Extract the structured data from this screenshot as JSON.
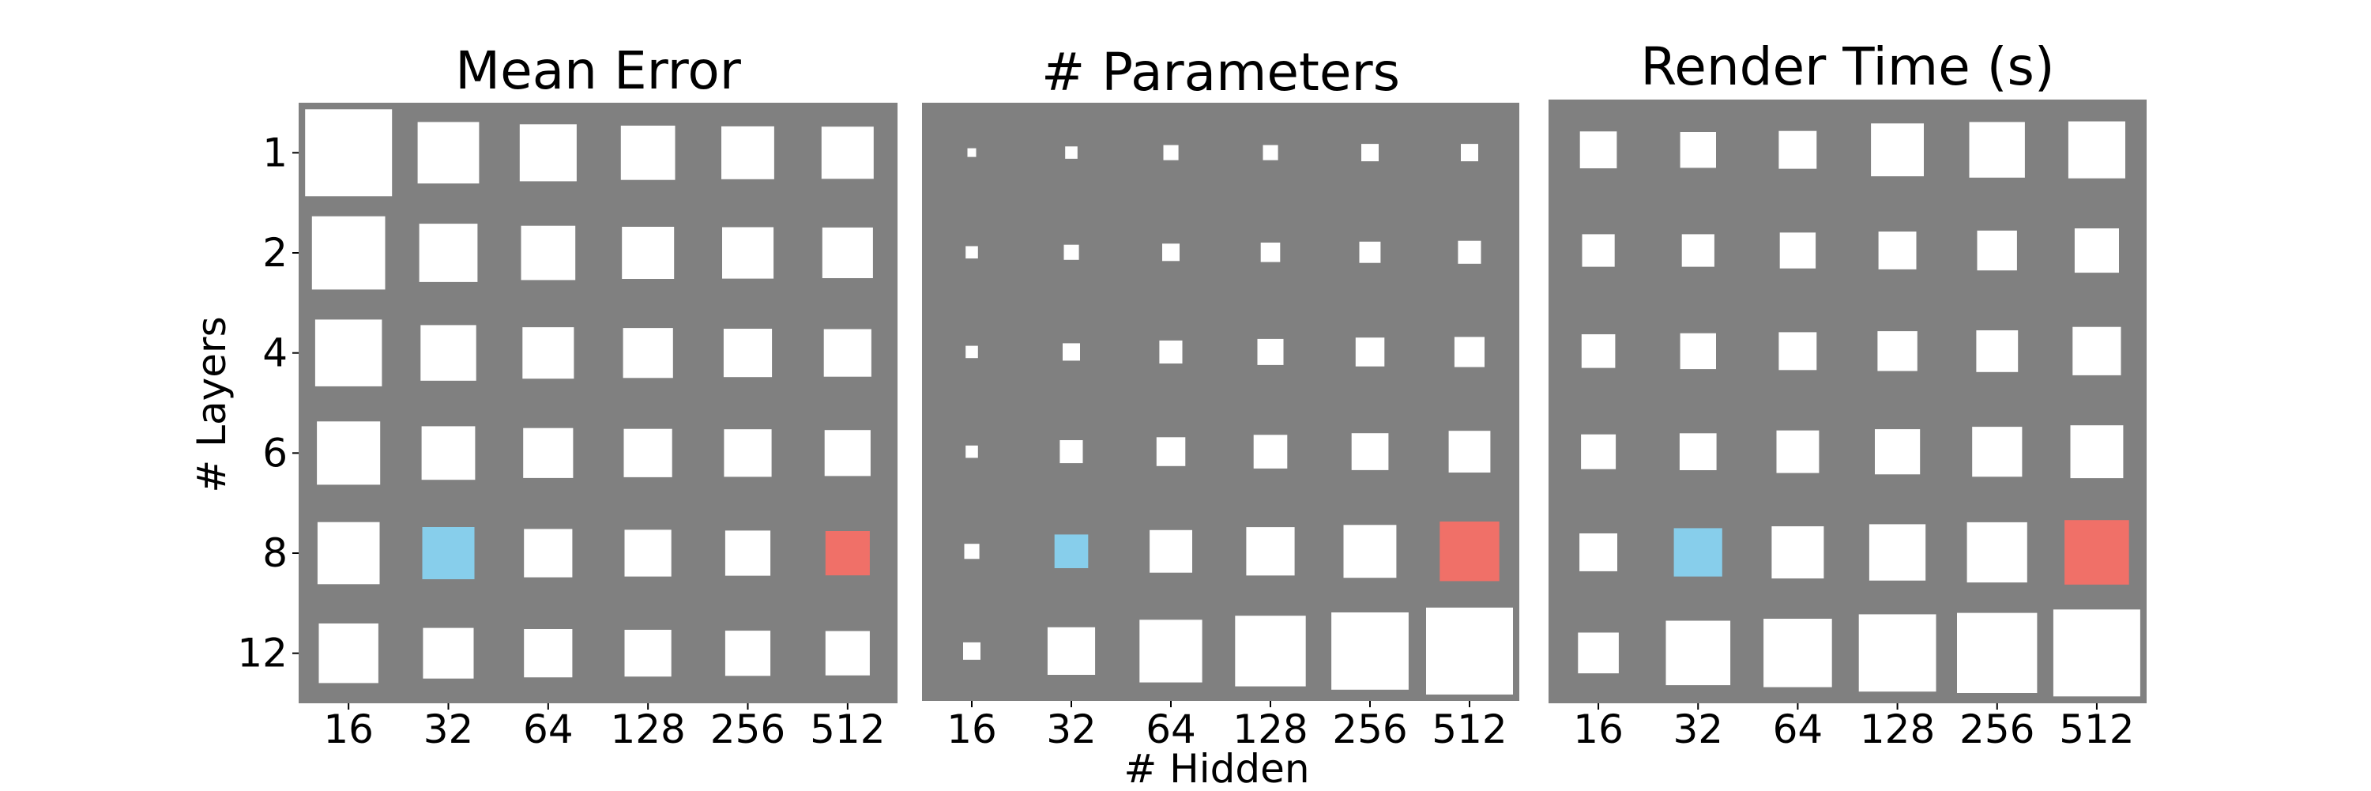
{
  "chart_data": {
    "type": "heatmap",
    "description_style": "hinton",
    "background_color": "#808080",
    "cell_color": "#ffffff",
    "highlight_colors": {
      "blue": "#87ceeb",
      "red": "#f07068"
    },
    "xlabel": "# Hidden",
    "ylabel": "# Layers",
    "x_categories": [
      "16",
      "32",
      "64",
      "128",
      "256",
      "512"
    ],
    "y_categories": [
      "1",
      "2",
      "4",
      "6",
      "8",
      "12"
    ],
    "panels": [
      {
        "title": "Mean Error",
        "highlights": [
          {
            "row": 4,
            "col": 1,
            "color": "blue"
          },
          {
            "row": 4,
            "col": 5,
            "color": "red"
          }
        ],
        "values": [
          [
            1.0,
            0.5,
            0.43,
            0.39,
            0.37,
            0.36
          ],
          [
            0.71,
            0.45,
            0.39,
            0.36,
            0.35,
            0.34
          ],
          [
            0.59,
            0.41,
            0.35,
            0.33,
            0.31,
            0.3
          ],
          [
            0.53,
            0.38,
            0.33,
            0.31,
            0.3,
            0.28
          ],
          [
            0.51,
            0.36,
            0.31,
            0.29,
            0.27,
            0.26
          ],
          [
            0.47,
            0.34,
            0.31,
            0.29,
            0.27,
            0.26
          ]
        ]
      },
      {
        "title": "# Parameters",
        "highlights": [
          {
            "row": 4,
            "col": 1,
            "color": "blue"
          },
          {
            "row": 4,
            "col": 5,
            "color": "red"
          }
        ],
        "values": [
          [
            0.01,
            0.02,
            0.03,
            0.03,
            0.04,
            0.04
          ],
          [
            0.02,
            0.03,
            0.04,
            0.05,
            0.06,
            0.07
          ],
          [
            0.02,
            0.04,
            0.07,
            0.09,
            0.11,
            0.12
          ],
          [
            0.02,
            0.07,
            0.11,
            0.15,
            0.18,
            0.23
          ],
          [
            0.03,
            0.15,
            0.24,
            0.31,
            0.37,
            0.47
          ],
          [
            0.04,
            0.3,
            0.52,
            0.66,
            0.79,
            1.0
          ]
        ]
      },
      {
        "title": "Render Time (s)",
        "highlights": [
          {
            "row": 4,
            "col": 1,
            "color": "blue"
          },
          {
            "row": 4,
            "col": 5,
            "color": "red"
          }
        ],
        "values": [
          [
            0.18,
            0.17,
            0.19,
            0.37,
            0.41,
            0.43
          ],
          [
            0.14,
            0.14,
            0.17,
            0.19,
            0.21,
            0.26
          ],
          [
            0.15,
            0.17,
            0.19,
            0.21,
            0.23,
            0.31
          ],
          [
            0.16,
            0.18,
            0.24,
            0.27,
            0.33,
            0.37
          ],
          [
            0.19,
            0.31,
            0.36,
            0.42,
            0.48,
            0.55
          ],
          [
            0.22,
            0.55,
            0.62,
            0.79,
            0.85,
            1.0
          ]
        ]
      }
    ]
  }
}
